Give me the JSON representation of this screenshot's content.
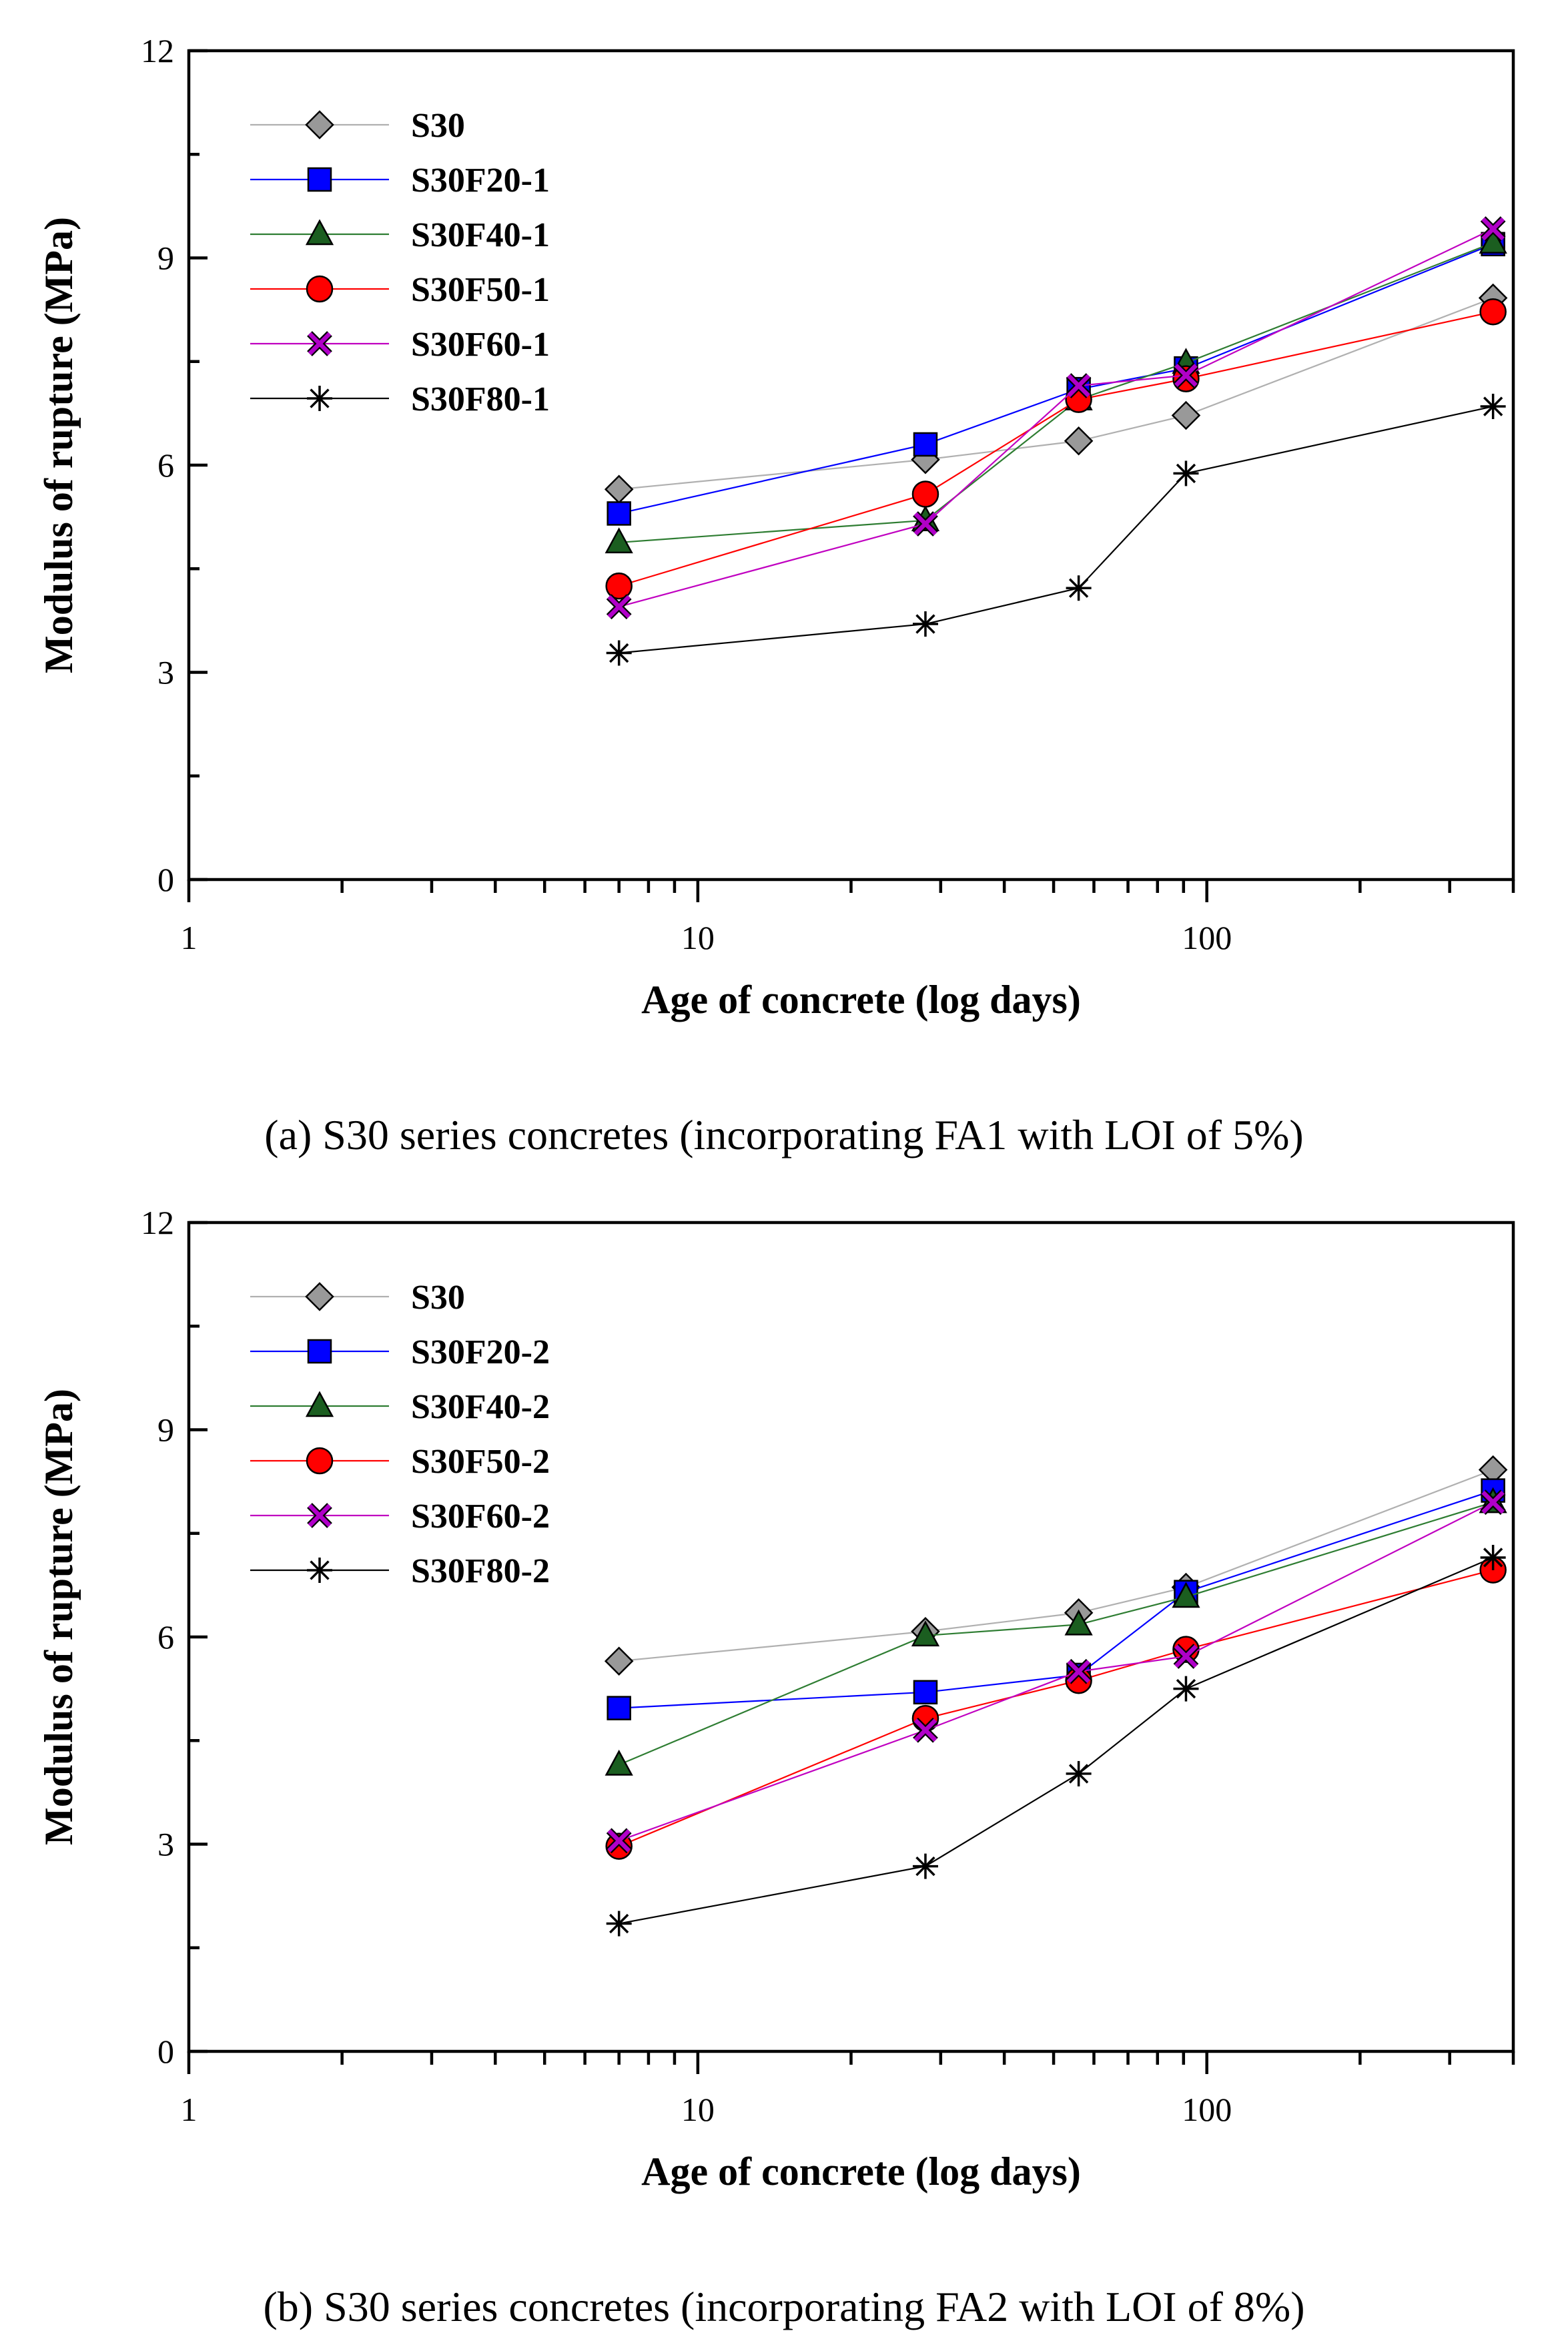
{
  "chart_data": [
    {
      "type": "line",
      "caption": "(a) S30 series concretes (incorporating FA1 with LOI of 5%)",
      "xlabel": "Age of concrete (log days)",
      "ylabel": "Modulus of rupture (MPa)",
      "xscale": "log",
      "xlim": [
        1,
        400
      ],
      "ylim": [
        0,
        12
      ],
      "xticks": [
        1,
        10,
        100
      ],
      "xtick_labels": [
        "1",
        "10",
        "100"
      ],
      "yticks": [
        0,
        3,
        6,
        9,
        12
      ],
      "ytick_labels": [
        "0",
        "3",
        "6",
        "9",
        "12"
      ],
      "legend_position": "top-left",
      "grid": false,
      "x": [
        7,
        28,
        56,
        91,
        365
      ],
      "series": [
        {
          "name": "S30",
          "marker": "diamond",
          "color": "#b0b0b0",
          "fill": "#999999",
          "values": [
            5.65,
            6.08,
            6.35,
            6.72,
            8.42
          ]
        },
        {
          "name": "S30F20-1",
          "marker": "square",
          "color": "#0000ff",
          "fill": "#0000ff",
          "values": [
            5.3,
            6.3,
            7.1,
            7.4,
            9.2
          ]
        },
        {
          "name": "S30F40-1",
          "marker": "triangle",
          "color": "#2e7d32",
          "fill": "#1b5e20",
          "values": [
            4.88,
            5.2,
            6.95,
            7.48,
            9.22
          ]
        },
        {
          "name": "S30F50-1",
          "marker": "circle",
          "color": "#ff0000",
          "fill": "#ff0000",
          "values": [
            4.25,
            5.58,
            6.95,
            7.25,
            8.22
          ]
        },
        {
          "name": "S30F60-1",
          "marker": "x",
          "color": "#c000c0",
          "fill": "#b000c8",
          "values": [
            3.95,
            5.15,
            7.15,
            7.3,
            9.42
          ]
        },
        {
          "name": "S30F80-1",
          "marker": "asterisk",
          "color": "#000000",
          "fill": "#000000",
          "values": [
            3.28,
            3.7,
            4.22,
            5.88,
            6.85
          ]
        }
      ]
    },
    {
      "type": "line",
      "caption": "(b) S30 series concretes (incorporating FA2 with LOI of 8%)",
      "xlabel": "Age of concrete (log days)",
      "ylabel": "Modulus of rupture (MPa)",
      "xscale": "log",
      "xlim": [
        1,
        400
      ],
      "ylim": [
        0,
        12
      ],
      "xticks": [
        1,
        10,
        100
      ],
      "xtick_labels": [
        "1",
        "10",
        "100"
      ],
      "yticks": [
        0,
        3,
        6,
        9,
        12
      ],
      "ytick_labels": [
        "0",
        "3",
        "6",
        "9",
        "12"
      ],
      "legend_position": "top-left",
      "grid": false,
      "x": [
        7,
        28,
        56,
        91,
        365
      ],
      "series": [
        {
          "name": "S30",
          "marker": "diamond",
          "color": "#b0b0b0",
          "fill": "#999999",
          "values": [
            5.65,
            6.08,
            6.35,
            6.72,
            8.42
          ]
        },
        {
          "name": "S30F20-2",
          "marker": "square",
          "color": "#0000ff",
          "fill": "#0000ff",
          "values": [
            4.97,
            5.2,
            5.45,
            6.65,
            8.12
          ]
        },
        {
          "name": "S30F40-2",
          "marker": "triangle",
          "color": "#2e7d32",
          "fill": "#1b5e20",
          "values": [
            4.15,
            6.02,
            6.18,
            6.58,
            7.95
          ]
        },
        {
          "name": "S30F50-2",
          "marker": "circle",
          "color": "#ff0000",
          "fill": "#ff0000",
          "values": [
            2.97,
            4.82,
            5.37,
            5.82,
            6.97
          ]
        },
        {
          "name": "S30F60-2",
          "marker": "x",
          "color": "#c000c0",
          "fill": "#b000c8",
          "values": [
            3.05,
            4.65,
            5.5,
            5.72,
            7.95
          ]
        },
        {
          "name": "S30F80-2",
          "marker": "asterisk",
          "color": "#000000",
          "fill": "#000000",
          "values": [
            1.85,
            2.68,
            4.02,
            5.25,
            7.15
          ]
        }
      ]
    }
  ]
}
